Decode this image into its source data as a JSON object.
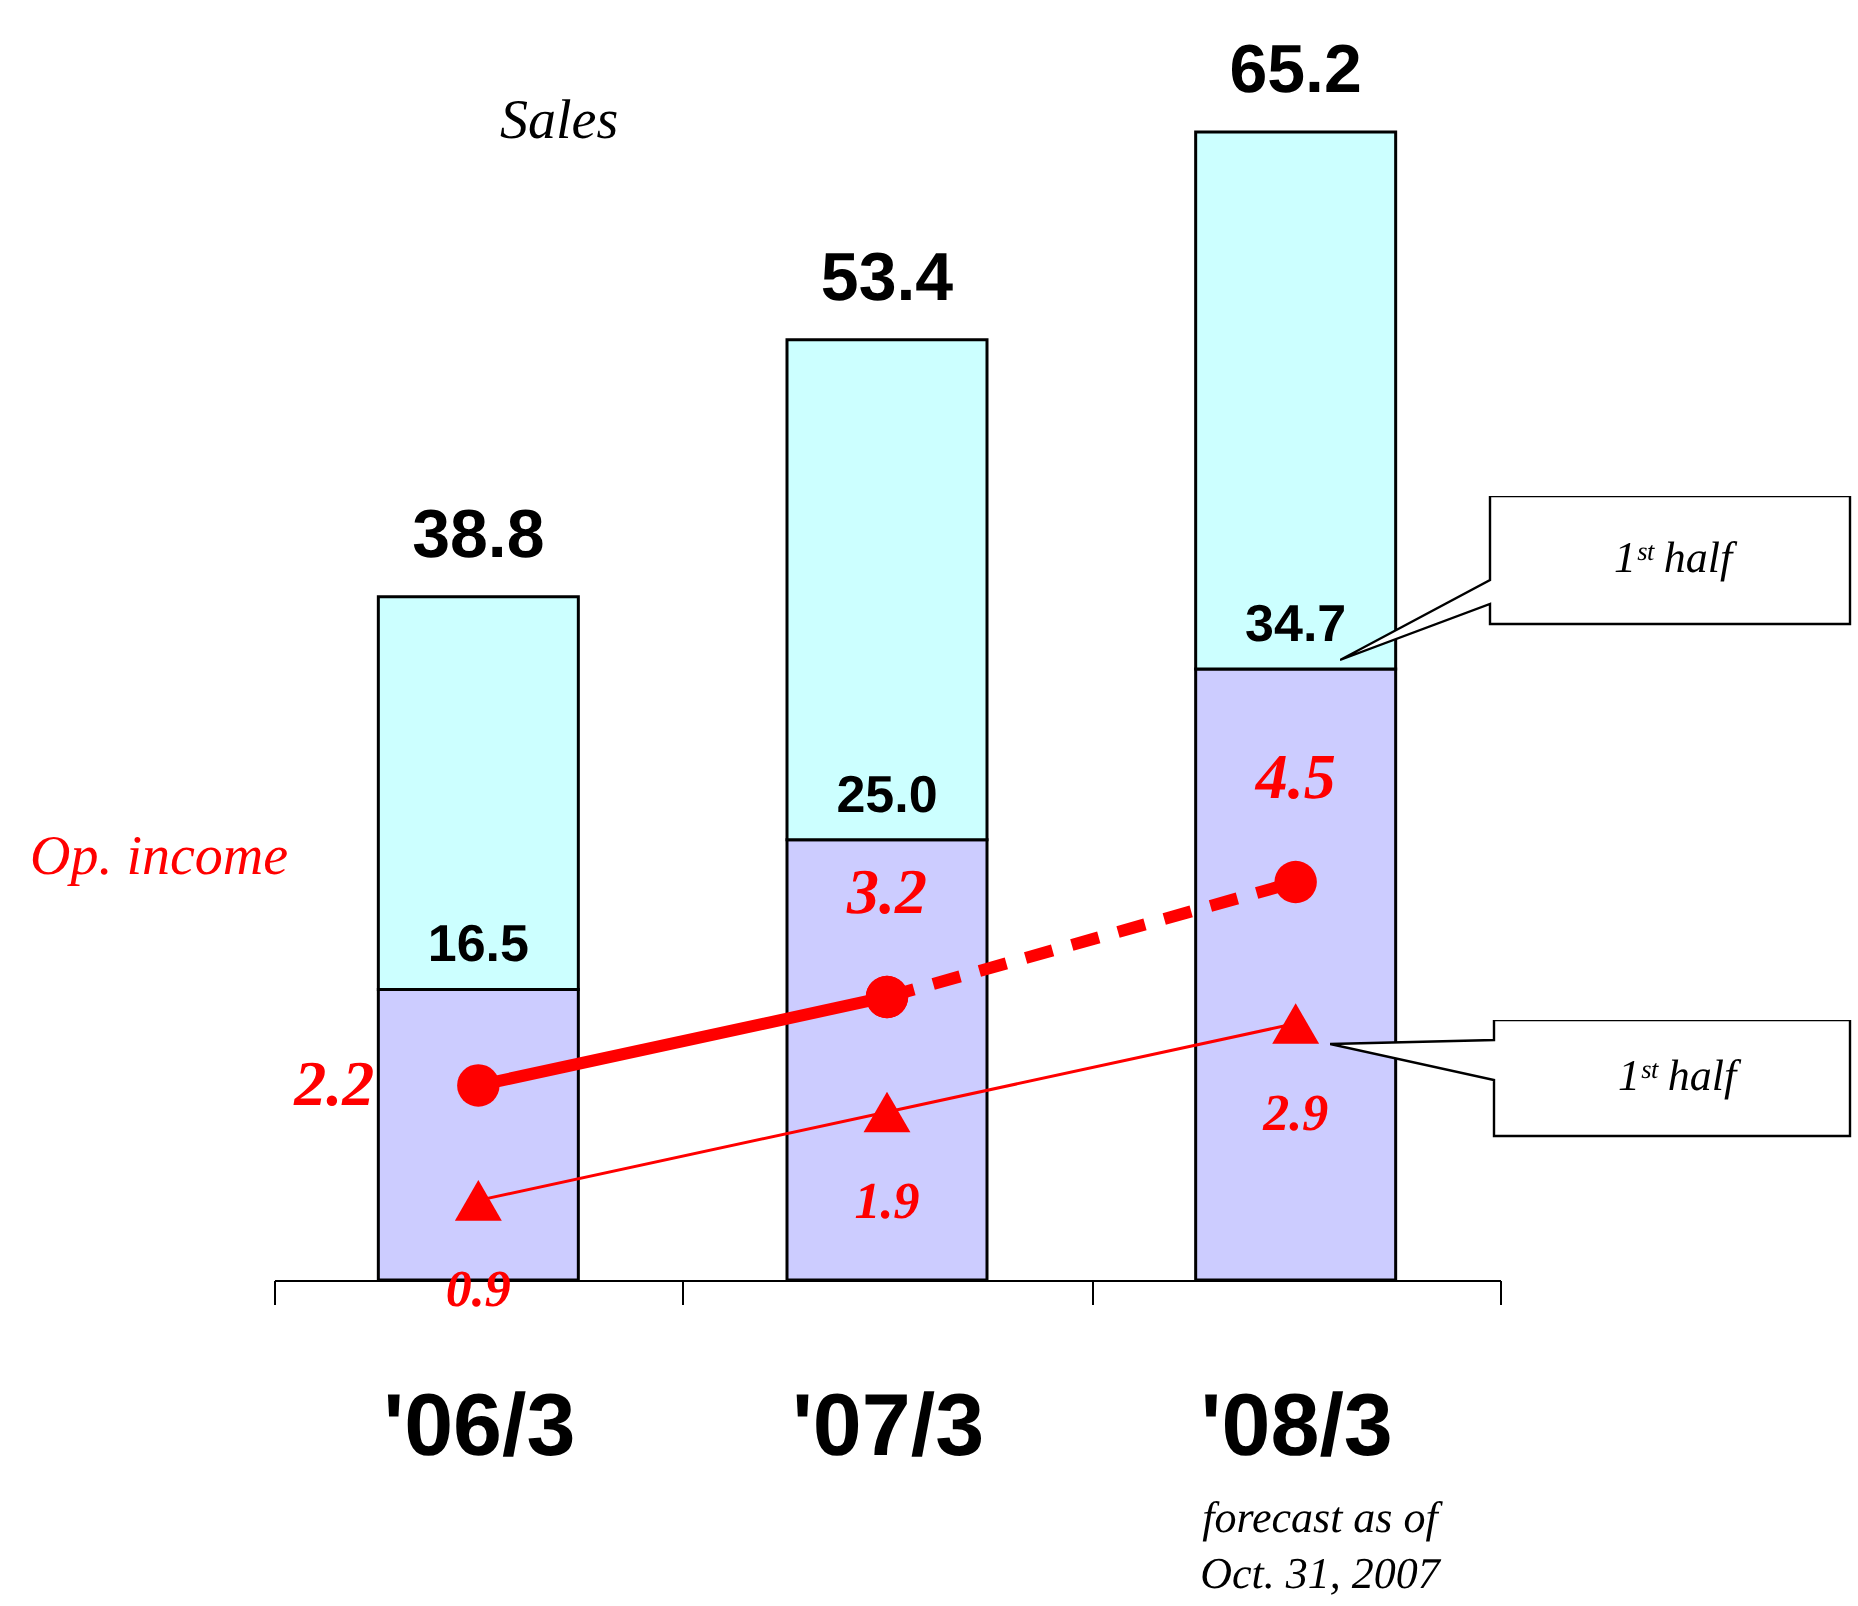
{
  "chart_data": {
    "type": "bar",
    "stacked": true,
    "categories": [
      "'06/3",
      "'07/3",
      "'08/3"
    ],
    "tick_labels": "x",
    "series": [
      {
        "color": "#ccccff",
        "values": [
          16.5,
          25.0,
          34.7
        ],
        "value_labels": [
          "16.5",
          "25.0",
          "34.7"
        ]
      },
      {
        "color": "#ccffff",
        "values": [
          22.3,
          28.4,
          30.5
        ]
      },
      {
        "type": "line",
        "axis": "y2",
        "color": "#ff0000",
        "marker": "circle",
        "line_style": "solid",
        "values": [
          2.2,
          3.2,
          null
        ],
        "value_labels": [
          "2.2",
          "3.2",
          null
        ]
      },
      {
        "type": "line",
        "axis": "y2",
        "color": "#ff0000",
        "marker": "circle",
        "line_style": "dashed",
        "values": [
          null,
          3.2,
          4.5
        ],
        "value_labels": [
          null,
          null,
          "4.5"
        ]
      },
      {
        "type": "line",
        "axis": "y2",
        "color": "#ff0000",
        "marker": "triangle",
        "line_style": "solid",
        "values": [
          0.9,
          1.9,
          2.9
        ],
        "value_labels": [
          "0.9",
          "1.9",
          "2.9"
        ]
      }
    ],
    "totals": [
      "38.8",
      "53.4",
      "65.2"
    ],
    "annotations": [
      "Sales",
      "Op. income",
      "1ˢᵗ half",
      "1ˢᵗ half",
      "forecast as of Oct. 31, 2007"
    ]
  }
}
